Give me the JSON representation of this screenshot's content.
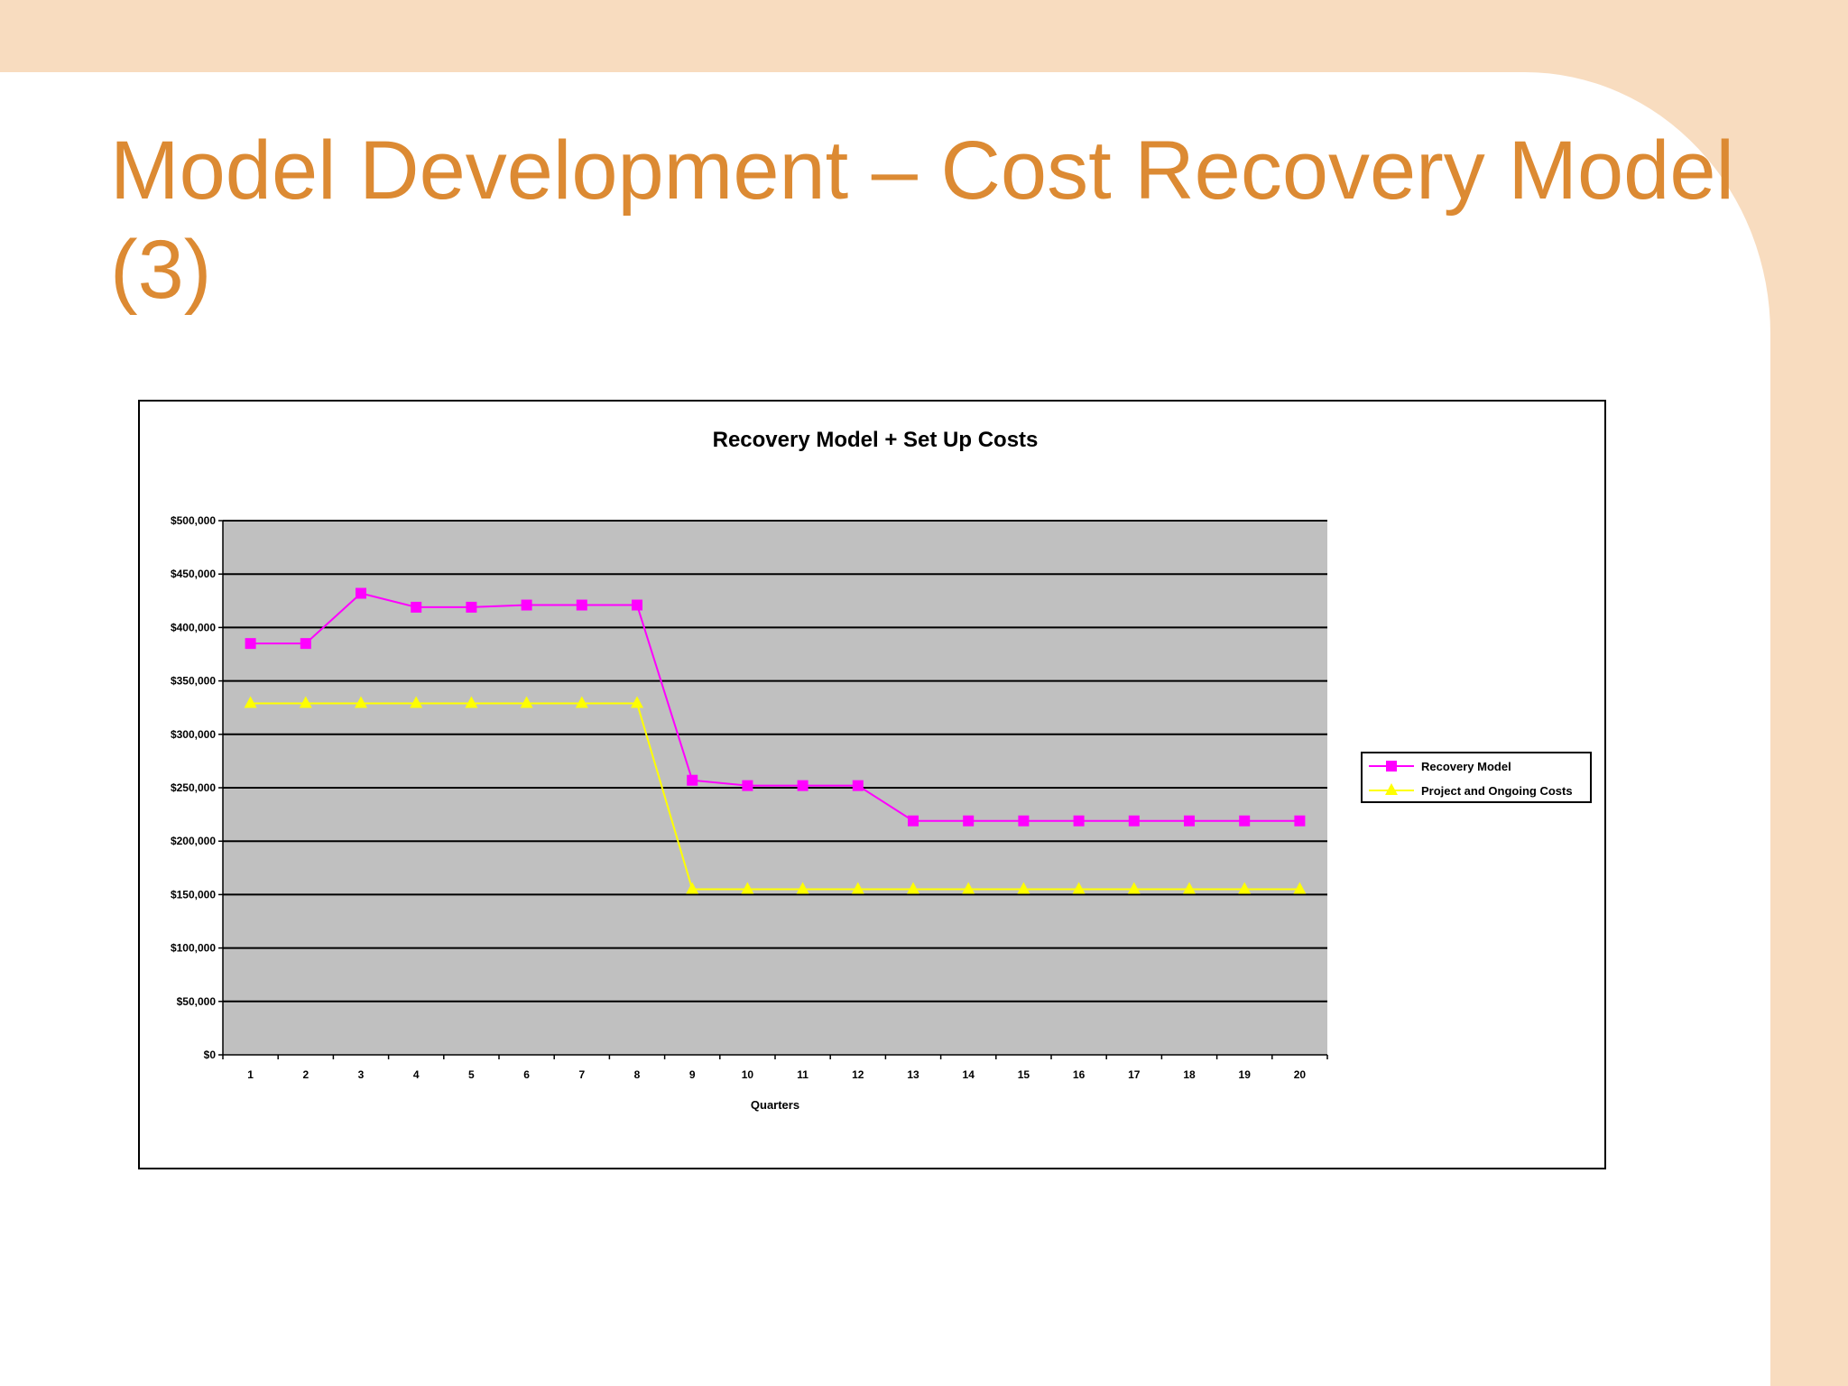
{
  "slide": {
    "title": "Model Development – Cost Recovery Model\n(3)"
  },
  "colors": {
    "title": "#dc8a33",
    "band": "#f8dcbf",
    "plot_bg": "#c0c0c0",
    "recovery_model": "#ff00ff",
    "project_costs": "#ffff00"
  },
  "chart_data": {
    "type": "line",
    "title": "Recovery Model + Set Up Costs",
    "xlabel": "Quarters",
    "ylabel": "",
    "categories": [
      "1",
      "2",
      "3",
      "4",
      "5",
      "6",
      "7",
      "8",
      "9",
      "10",
      "11",
      "12",
      "13",
      "14",
      "15",
      "16",
      "17",
      "18",
      "19",
      "20"
    ],
    "ylim": [
      0,
      500000
    ],
    "ytick_labels": [
      "$0",
      "$50,000",
      "$100,000",
      "$150,000",
      "$200,000",
      "$250,000",
      "$300,000",
      "$350,000",
      "$400,000",
      "$450,000",
      "$500,000"
    ],
    "grid": true,
    "legend_position": "right",
    "series": [
      {
        "name": "Recovery Model",
        "marker": "square",
        "color": "#ff00ff",
        "values": [
          385000,
          385000,
          432000,
          419000,
          419000,
          421000,
          421000,
          421000,
          257000,
          252000,
          252000,
          252000,
          219000,
          219000,
          219000,
          219000,
          219000,
          219000,
          219000,
          219000
        ]
      },
      {
        "name": "Project and Ongoing Costs",
        "marker": "triangle",
        "color": "#ffff00",
        "values": [
          329000,
          329000,
          329000,
          329000,
          329000,
          329000,
          329000,
          329000,
          155000,
          155000,
          155000,
          155000,
          155000,
          155000,
          155000,
          155000,
          155000,
          155000,
          155000,
          155000
        ]
      }
    ]
  }
}
